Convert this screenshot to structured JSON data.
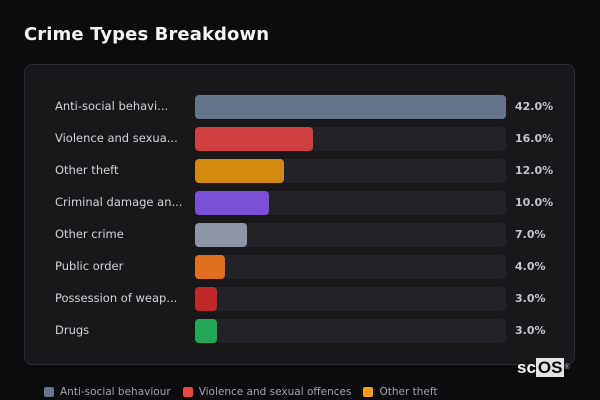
{
  "header": {
    "title": "Crime Types Breakdown"
  },
  "chart_data": {
    "type": "bar",
    "orientation": "horizontal",
    "title": "Crime Types Breakdown",
    "categories": [
      "Anti-social behaviour",
      "Violence and sexual offences",
      "Other theft",
      "Criminal damage and arson",
      "Other crime",
      "Public order",
      "Possession of weapons",
      "Drugs"
    ],
    "display_labels": [
      "Anti-social behavi...",
      "Violence and sexua...",
      "Other theft",
      "Criminal damage an...",
      "Other crime",
      "Public order",
      "Possession of weap...",
      "Drugs"
    ],
    "values": [
      42.0,
      16.0,
      12.0,
      10.0,
      7.0,
      4.0,
      3.0,
      3.0
    ],
    "value_labels": [
      "42.0%",
      "16.0%",
      "12.0%",
      "10.0%",
      "7.0%",
      "4.0%",
      "3.0%",
      "3.0%"
    ],
    "colors": [
      "#64748b",
      "#d04040",
      "#d4890f",
      "#7b4fd6",
      "#8c96a8",
      "#e07020",
      "#c02828",
      "#22a855"
    ],
    "xlim": [
      0,
      42
    ],
    "unit": "%",
    "grid": false,
    "legend_position": "bottom"
  },
  "legend": {
    "items": [
      {
        "label": "Anti-social behaviour",
        "color": "#64748b"
      },
      {
        "label": "Violence and sexual offences",
        "color": "#ef4444"
      },
      {
        "label": "Other theft",
        "color": "#f59e0b"
      }
    ]
  },
  "watermark": {
    "prefix": "sc",
    "highlight": "OS",
    "mark": "®"
  }
}
